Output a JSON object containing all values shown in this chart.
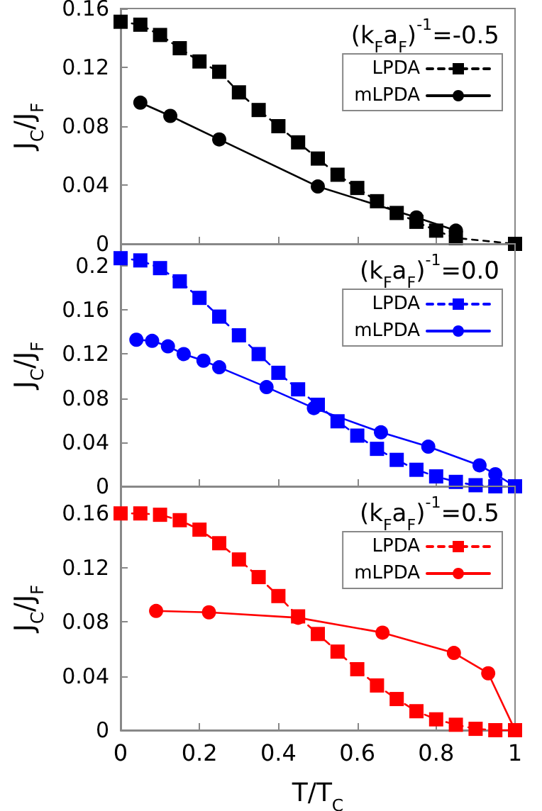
{
  "chart_data": [
    {
      "type": "line",
      "annotations": [
        "(k$_{F}$a$_{F}$)$^{-1}$=-0.5"
      ],
      "ylabel": "J$_{C}$/J$_{F}$",
      "xlim": [
        0,
        1
      ],
      "xticks": [
        0,
        0.2,
        0.4,
        0.6,
        0.8,
        1
      ],
      "ylim": [
        0,
        0.16
      ],
      "yticks": [
        0,
        0.04,
        0.08,
        0.12,
        0.16
      ],
      "tick_labels": "y",
      "grid": false,
      "legend": "top right",
      "series": [
        {
          "name": "LPDA",
          "color": "#000000",
          "marker": "square",
          "line_style": "dashed",
          "x": [
            0,
            0.05,
            0.1,
            0.15,
            0.2,
            0.25,
            0.3,
            0.35,
            0.4,
            0.45,
            0.5,
            0.55,
            0.6,
            0.65,
            0.7,
            0.75,
            0.8,
            0.85,
            1
          ],
          "values": [
            0.151,
            0.149,
            0.142,
            0.133,
            0.124,
            0.117,
            0.103,
            0.091,
            0.08,
            0.069,
            0.058,
            0.047,
            0.038,
            0.029,
            0.021,
            0.015,
            0.009,
            0.004,
            0
          ]
        },
        {
          "name": "mLPDA",
          "color": "#000000",
          "marker": "circle",
          "line_style": "solid",
          "x": [
            0.05,
            0.126,
            0.25,
            0.5,
            0.75,
            0.85
          ],
          "values": [
            0.096,
            0.087,
            0.071,
            0.039,
            0.018,
            0.009
          ]
        }
      ]
    },
    {
      "type": "line",
      "annotations": [
        "(k$_{F}$a$_{F}$)$^{-1}$=0.0"
      ],
      "ylabel": "J$_{C}$/J$_{F}$",
      "xlim": [
        0,
        1
      ],
      "xticks": [
        0,
        0.2,
        0.4,
        0.6,
        0.8,
        1
      ],
      "ylim": [
        0,
        0.22
      ],
      "yticks": [
        0,
        0.04,
        0.08,
        0.12,
        0.16,
        0.2
      ],
      "tick_labels": "y",
      "grid": false,
      "legend": "top right",
      "series": [
        {
          "name": "LPDA",
          "color": "#0000ff",
          "marker": "square",
          "line_style": "dashed",
          "x": [
            0,
            0.05,
            0.1,
            0.15,
            0.2,
            0.25,
            0.3,
            0.35,
            0.4,
            0.45,
            0.5,
            0.55,
            0.6,
            0.65,
            0.7,
            0.75,
            0.8,
            0.85,
            0.9,
            0.95,
            1
          ],
          "values": [
            0.207,
            0.205,
            0.198,
            0.186,
            0.171,
            0.154,
            0.137,
            0.12,
            0.103,
            0.088,
            0.074,
            0.059,
            0.046,
            0.034,
            0.024,
            0.015,
            0.009,
            0.004,
            0.001,
            0,
            0
          ]
        },
        {
          "name": "mLPDA",
          "color": "#0000ff",
          "marker": "circle",
          "line_style": "solid",
          "x": [
            0.04,
            0.08,
            0.12,
            0.16,
            0.21,
            0.25,
            0.37,
            0.49,
            0.66,
            0.78,
            0.91,
            0.95,
            1
          ],
          "values": [
            0.133,
            0.132,
            0.127,
            0.12,
            0.114,
            0.108,
            0.09,
            0.071,
            0.049,
            0.036,
            0.019,
            0.011,
            0
          ]
        }
      ]
    },
    {
      "type": "line",
      "annotations": [
        "(k$_{F}$a$_{F}$)$^{-1}$=0.5"
      ],
      "xlabel": "T/T$_{C}$",
      "ylabel": "J$_{C}$/J$_{F}$",
      "xlim": [
        0,
        1
      ],
      "xticks": [
        0,
        0.2,
        0.4,
        0.6,
        0.8,
        1
      ],
      "ylim": [
        0,
        0.18
      ],
      "yticks": [
        0,
        0.04,
        0.08,
        0.12,
        0.16
      ],
      "grid": false,
      "legend": "top right",
      "series": [
        {
          "name": "LPDA",
          "color": "#ff0000",
          "marker": "square",
          "line_style": "dashed",
          "x": [
            0,
            0.05,
            0.1,
            0.15,
            0.2,
            0.25,
            0.3,
            0.35,
            0.4,
            0.45,
            0.5,
            0.55,
            0.6,
            0.65,
            0.7,
            0.75,
            0.8,
            0.85,
            0.9,
            0.95,
            1
          ],
          "values": [
            0.16,
            0.16,
            0.159,
            0.155,
            0.148,
            0.138,
            0.126,
            0.113,
            0.099,
            0.084,
            0.071,
            0.058,
            0.045,
            0.033,
            0.023,
            0.014,
            0.008,
            0.004,
            0.001,
            0,
            0
          ]
        },
        {
          "name": "mLPDA",
          "color": "#ff0000",
          "marker": "circle",
          "line_style": "solid",
          "x": [
            0.09,
            0.224,
            0.45,
            0.664,
            0.845,
            0.932,
            1
          ],
          "values": [
            0.088,
            0.087,
            0.083,
            0.072,
            0.057,
            0.042,
            0
          ]
        }
      ]
    }
  ]
}
